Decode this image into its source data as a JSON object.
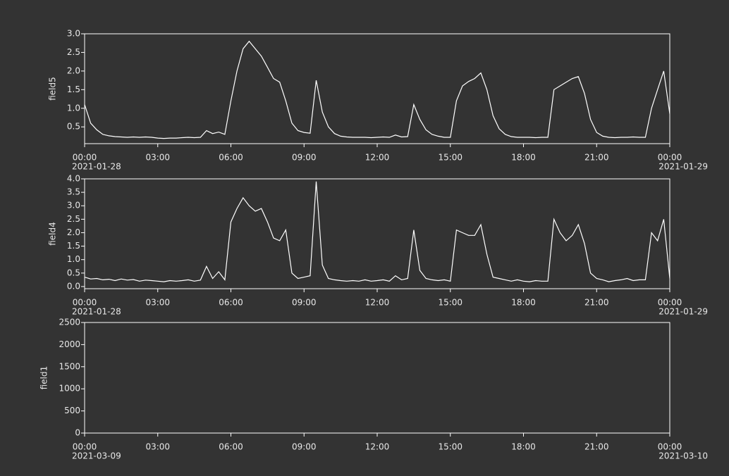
{
  "chart_data": [
    {
      "type": "line",
      "y_label": "field5",
      "start_date": "2021-01-28",
      "end_date": "2021-01-29",
      "x": [
        0,
        0.25,
        0.5,
        0.75,
        1,
        1.25,
        1.5,
        1.75,
        2,
        2.25,
        2.5,
        2.75,
        3,
        3.25,
        3.5,
        3.75,
        4,
        4.25,
        4.5,
        4.75,
        5,
        5.25,
        5.5,
        5.75,
        6,
        6.25,
        6.5,
        6.75,
        7,
        7.25,
        7.5,
        7.75,
        8,
        8.25,
        8.5,
        8.75,
        9,
        9.25,
        9.5,
        9.75,
        10,
        10.25,
        10.5,
        10.75,
        11,
        11.25,
        11.5,
        11.75,
        12,
        12.25,
        12.5,
        12.75,
        13,
        13.25,
        13.5,
        13.75,
        14,
        14.25,
        14.5,
        14.75,
        15,
        15.25,
        15.5,
        15.75,
        16,
        16.25,
        16.5,
        16.75,
        17,
        17.25,
        17.5,
        17.75,
        18,
        18.25,
        18.5,
        18.75,
        19,
        19.25,
        19.5,
        19.75,
        20,
        20.25,
        20.5,
        20.75,
        21,
        21.25,
        21.5,
        21.75,
        22,
        22.25,
        22.5,
        22.75,
        23,
        23.25,
        23.5,
        23.75,
        24
      ],
      "series": [
        {
          "color": "#ffffff",
          "values": [
            1.1,
            0.6,
            0.42,
            0.3,
            0.26,
            0.24,
            0.23,
            0.22,
            0.23,
            0.22,
            0.23,
            0.22,
            0.2,
            0.19,
            0.2,
            0.2,
            0.21,
            0.22,
            0.21,
            0.22,
            0.4,
            0.32,
            0.36,
            0.3,
            1.2,
            2.0,
            2.6,
            2.8,
            2.6,
            2.4,
            2.1,
            1.8,
            1.7,
            1.2,
            0.6,
            0.4,
            0.35,
            0.33,
            1.75,
            0.9,
            0.5,
            0.32,
            0.25,
            0.23,
            0.22,
            0.22,
            0.22,
            0.21,
            0.22,
            0.23,
            0.22,
            0.28,
            0.23,
            0.24,
            1.1,
            0.7,
            0.42,
            0.3,
            0.25,
            0.22,
            0.22,
            1.2,
            1.6,
            1.72,
            1.8,
            1.95,
            1.5,
            0.8,
            0.45,
            0.3,
            0.24,
            0.22,
            0.22,
            0.22,
            0.21,
            0.22,
            0.22,
            1.5,
            1.6,
            1.7,
            1.8,
            1.85,
            1.4,
            0.7,
            0.35,
            0.25,
            0.22,
            0.21,
            0.22,
            0.22,
            0.23,
            0.22,
            0.22,
            1.0,
            1.5,
            2.0,
            0.85
          ]
        }
      ],
      "xlim": [
        0,
        24
      ],
      "xticks": [
        {
          "value": 0,
          "label": "00:00"
        },
        {
          "value": 3,
          "label": "03:00"
        },
        {
          "value": 6,
          "label": "06:00"
        },
        {
          "value": 9,
          "label": "09:00"
        },
        {
          "value": 12,
          "label": "12:00"
        },
        {
          "value": 15,
          "label": "15:00"
        },
        {
          "value": 18,
          "label": "18:00"
        },
        {
          "value": 21,
          "label": "21:00"
        },
        {
          "value": 24,
          "label": "00:00"
        }
      ],
      "ylim": [
        0.05,
        3.0
      ],
      "yticks": [
        0.5,
        {
          "value": 1,
          "label": "1.0"
        },
        1.5,
        {
          "value": 2,
          "label": "2.0"
        },
        2.5,
        {
          "value": 3,
          "label": "3.0"
        }
      ]
    },
    {
      "type": "line",
      "y_label": "field4",
      "start_date": "2021-01-28",
      "end_date": "2021-01-29",
      "x": [
        0,
        0.25,
        0.5,
        0.75,
        1,
        1.25,
        1.5,
        1.75,
        2,
        2.25,
        2.5,
        2.75,
        3,
        3.25,
        3.5,
        3.75,
        4,
        4.25,
        4.5,
        4.75,
        5,
        5.25,
        5.5,
        5.75,
        6,
        6.25,
        6.5,
        6.75,
        7,
        7.25,
        7.5,
        7.75,
        8,
        8.25,
        8.5,
        8.75,
        9,
        9.25,
        9.5,
        9.75,
        10,
        10.25,
        10.5,
        10.75,
        11,
        11.25,
        11.5,
        11.75,
        12,
        12.25,
        12.5,
        12.75,
        13,
        13.25,
        13.5,
        13.75,
        14,
        14.25,
        14.5,
        14.75,
        15,
        15.25,
        15.5,
        15.75,
        16,
        16.25,
        16.5,
        16.75,
        17,
        17.25,
        17.5,
        17.75,
        18,
        18.25,
        18.5,
        18.75,
        19,
        19.25,
        19.5,
        19.75,
        20,
        20.25,
        20.5,
        20.75,
        21,
        21.25,
        21.5,
        21.75,
        22,
        22.25,
        22.5,
        22.75,
        23,
        23.25,
        23.5,
        23.75,
        24
      ],
      "series": [
        {
          "color": "#ffffff",
          "values": [
            0.35,
            0.28,
            0.3,
            0.25,
            0.27,
            0.22,
            0.28,
            0.24,
            0.26,
            0.2,
            0.24,
            0.22,
            0.2,
            0.18,
            0.22,
            0.2,
            0.22,
            0.25,
            0.2,
            0.24,
            0.75,
            0.3,
            0.55,
            0.25,
            2.4,
            2.9,
            3.3,
            3.0,
            2.8,
            2.9,
            2.4,
            1.8,
            1.7,
            2.1,
            0.5,
            0.3,
            0.35,
            0.4,
            3.9,
            0.8,
            0.3,
            0.25,
            0.22,
            0.2,
            0.22,
            0.2,
            0.25,
            0.2,
            0.22,
            0.25,
            0.2,
            0.4,
            0.25,
            0.3,
            2.1,
            0.6,
            0.3,
            0.25,
            0.22,
            0.25,
            0.2,
            2.1,
            2.0,
            1.9,
            1.9,
            2.3,
            1.2,
            0.35,
            0.3,
            0.25,
            0.2,
            0.25,
            0.2,
            0.18,
            0.22,
            0.2,
            0.2,
            2.5,
            2.0,
            1.7,
            1.9,
            2.3,
            1.6,
            0.5,
            0.3,
            0.25,
            0.18,
            0.22,
            0.25,
            0.3,
            0.22,
            0.25,
            0.25,
            2.0,
            1.7,
            2.5,
            0.3
          ]
        }
      ],
      "xlim": [
        0,
        24
      ],
      "xticks": [
        {
          "value": 0,
          "label": "00:00"
        },
        {
          "value": 3,
          "label": "03:00"
        },
        {
          "value": 6,
          "label": "06:00"
        },
        {
          "value": 9,
          "label": "09:00"
        },
        {
          "value": 12,
          "label": "12:00"
        },
        {
          "value": 15,
          "label": "15:00"
        },
        {
          "value": 18,
          "label": "18:00"
        },
        {
          "value": 21,
          "label": "21:00"
        },
        {
          "value": 24,
          "label": "00:00"
        }
      ],
      "ylim": [
        -0.08,
        4.0
      ],
      "yticks": [
        {
          "value": 0,
          "label": "0.0"
        },
        0.5,
        {
          "value": 1,
          "label": "1.0"
        },
        1.5,
        {
          "value": 2,
          "label": "2.0"
        },
        2.5,
        {
          "value": 3,
          "label": "3.0"
        },
        3.5,
        {
          "value": 4,
          "label": "4.0"
        }
      ]
    },
    {
      "type": "line",
      "y_label": "field1",
      "start_date": "2021-03-09",
      "end_date": "2021-03-10",
      "x": [],
      "series": [
        {
          "color": "#ffffff",
          "values": []
        }
      ],
      "xlim": [
        0,
        24
      ],
      "xticks": [
        {
          "value": 0,
          "label": "00:00"
        },
        {
          "value": 3,
          "label": "03:00"
        },
        {
          "value": 6,
          "label": "06:00"
        },
        {
          "value": 9,
          "label": "09:00"
        },
        {
          "value": 12,
          "label": "12:00"
        },
        {
          "value": 15,
          "label": "15:00"
        },
        {
          "value": 18,
          "label": "18:00"
        },
        {
          "value": 21,
          "label": "21:00"
        },
        {
          "value": 24,
          "label": "00:00"
        }
      ],
      "ylim": [
        0,
        2500
      ],
      "yticks": [
        0,
        500,
        1000,
        1500,
        2000,
        2500
      ]
    }
  ]
}
